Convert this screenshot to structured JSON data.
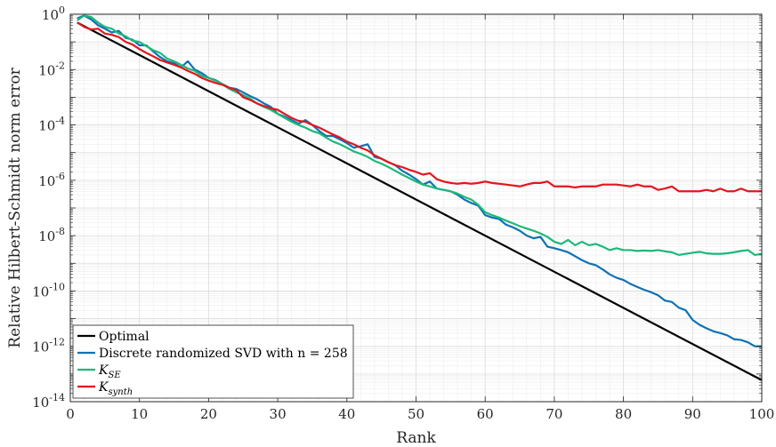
{
  "chart_data": {
    "type": "line",
    "xlabel": "Rank",
    "ylabel": "Relative Hilbert-Schmidt norm error",
    "xlim": [
      0,
      100
    ],
    "ylim_log10": [
      -14,
      0
    ],
    "yscale": "log",
    "grid": true,
    "minor_grid": true,
    "legend_position": "bottom-left",
    "x_ticks": [
      "0",
      "10",
      "20",
      "30",
      "40",
      "50",
      "60",
      "70",
      "80",
      "90",
      "100"
    ],
    "y_ticks": [
      {
        "base": "10",
        "exp": "0",
        "log10": 0
      },
      {
        "base": "10",
        "exp": "-2",
        "log10": -2
      },
      {
        "base": "10",
        "exp": "-4",
        "log10": -4
      },
      {
        "base": "10",
        "exp": "-6",
        "log10": -6
      },
      {
        "base": "10",
        "exp": "-8",
        "log10": -8
      },
      {
        "base": "10",
        "exp": "-10",
        "log10": -10
      },
      {
        "base": "10",
        "exp": "-12",
        "log10": -12
      },
      {
        "base": "10",
        "exp": "-14",
        "log10": -14
      }
    ],
    "series": [
      {
        "name": "Optimal",
        "color": "#000000",
        "points": [
          [
            1,
            0.5
          ],
          [
            100,
            6e-14
          ]
        ]
      },
      {
        "name": "Discrete randomized SVD with n = 258",
        "color": "#0f72b5",
        "points": [
          [
            1,
            0.7
          ],
          [
            2,
            0.9
          ],
          [
            3,
            0.65
          ],
          [
            4,
            0.4
          ],
          [
            5,
            0.3
          ],
          [
            6,
            0.22
          ],
          [
            7,
            0.25
          ],
          [
            8,
            0.14
          ],
          [
            9,
            0.12
          ],
          [
            10,
            0.075
          ],
          [
            11,
            0.075
          ],
          [
            12,
            0.045
          ],
          [
            13,
            0.028
          ],
          [
            14,
            0.02
          ],
          [
            15,
            0.017
          ],
          [
            16,
            0.012
          ],
          [
            17,
            0.02
          ],
          [
            18,
            0.01
          ],
          [
            19,
            0.0075
          ],
          [
            20,
            0.005
          ],
          [
            21,
            0.0042
          ],
          [
            22,
            0.003
          ],
          [
            23,
            0.0022
          ],
          [
            24,
            0.002
          ],
          [
            25,
            0.0015
          ],
          [
            26,
            0.0011
          ],
          [
            27,
            0.00085
          ],
          [
            28,
            0.0006
          ],
          [
            29,
            0.00045
          ],
          [
            30,
            0.00025
          ],
          [
            31,
            0.0002
          ],
          [
            32,
            0.00015
          ],
          [
            33,
            0.00011
          ],
          [
            34,
            0.00015
          ],
          [
            35,
            0.0001
          ],
          [
            36,
            6e-05
          ],
          [
            37,
            4e-05
          ],
          [
            38,
            4e-05
          ],
          [
            39,
            3e-05
          ],
          [
            40,
            2.2e-05
          ],
          [
            41,
            1.5e-05
          ],
          [
            42,
            1.7e-05
          ],
          [
            43,
            2e-05
          ],
          [
            44,
            7e-06
          ],
          [
            45,
            6e-06
          ],
          [
            46,
            4.5e-06
          ],
          [
            47,
            3.5e-06
          ],
          [
            48,
            2.2e-06
          ],
          [
            49,
            1.6e-06
          ],
          [
            50,
            1.1e-06
          ],
          [
            51,
            7e-07
          ],
          [
            52,
            9e-07
          ],
          [
            53,
            5e-07
          ],
          [
            54,
            4.5e-07
          ],
          [
            55,
            4e-07
          ],
          [
            56,
            3e-07
          ],
          [
            57,
            2e-07
          ],
          [
            58,
            1.5e-07
          ],
          [
            59,
            1.2e-07
          ],
          [
            60,
            5.5e-08
          ],
          [
            61,
            4.5e-08
          ],
          [
            62,
            4e-08
          ],
          [
            63,
            2.5e-08
          ],
          [
            64,
            2e-08
          ],
          [
            65,
            1.5e-08
          ],
          [
            66,
            1e-08
          ],
          [
            67,
            8e-09
          ],
          [
            68,
            9e-09
          ],
          [
            69,
            4e-09
          ],
          [
            70,
            3.5e-09
          ],
          [
            71,
            3e-09
          ],
          [
            72,
            2.5e-09
          ],
          [
            73,
            1.8e-09
          ],
          [
            74,
            1.3e-09
          ],
          [
            75,
            1e-09
          ],
          [
            76,
            8.5e-10
          ],
          [
            77,
            6e-10
          ],
          [
            78,
            4e-10
          ],
          [
            79,
            3e-10
          ],
          [
            80,
            2.5e-10
          ],
          [
            81,
            1.8e-10
          ],
          [
            82,
            1.4e-10
          ],
          [
            83,
            1.1e-10
          ],
          [
            84,
            9e-11
          ],
          [
            85,
            7e-11
          ],
          [
            86,
            4.5e-11
          ],
          [
            87,
            4e-11
          ],
          [
            88,
            2.5e-11
          ],
          [
            89,
            2e-11
          ],
          [
            90,
            9e-12
          ],
          [
            91,
            6e-12
          ],
          [
            92,
            4.5e-12
          ],
          [
            93,
            3.5e-12
          ],
          [
            94,
            3e-12
          ],
          [
            95,
            2.5e-12
          ],
          [
            96,
            1.8e-12
          ],
          [
            97,
            1.7e-12
          ],
          [
            98,
            1.4e-12
          ],
          [
            99,
            1e-12
          ],
          [
            100,
            1e-12
          ]
        ]
      },
      {
        "name": "K_SE",
        "color": "#1db87a",
        "points": [
          [
            1,
            0.6
          ],
          [
            2,
            0.9
          ],
          [
            3,
            0.8
          ],
          [
            4,
            0.5
          ],
          [
            5,
            0.35
          ],
          [
            6,
            0.3
          ],
          [
            7,
            0.2
          ],
          [
            8,
            0.16
          ],
          [
            9,
            0.11
          ],
          [
            10,
            0.1
          ],
          [
            11,
            0.07
          ],
          [
            12,
            0.05
          ],
          [
            13,
            0.04
          ],
          [
            14,
            0.025
          ],
          [
            15,
            0.02
          ],
          [
            16,
            0.015
          ],
          [
            17,
            0.011
          ],
          [
            18,
            0.009
          ],
          [
            19,
            0.006
          ],
          [
            20,
            0.005
          ],
          [
            21,
            0.004
          ],
          [
            22,
            0.003
          ],
          [
            23,
            0.002
          ],
          [
            24,
            0.0015
          ],
          [
            25,
            0.0012
          ],
          [
            26,
            0.0009
          ],
          [
            27,
            0.0006
          ],
          [
            28,
            0.00045
          ],
          [
            29,
            0.00035
          ],
          [
            30,
            0.00025
          ],
          [
            31,
            0.00018
          ],
          [
            32,
            0.00013
          ],
          [
            33,
            0.0001
          ],
          [
            34,
            8e-05
          ],
          [
            35,
            6e-05
          ],
          [
            36,
            5e-05
          ],
          [
            37,
            3.5e-05
          ],
          [
            38,
            2.5e-05
          ],
          [
            39,
            2e-05
          ],
          [
            40,
            1.5e-05
          ],
          [
            41,
            1.1e-05
          ],
          [
            42,
            9e-06
          ],
          [
            43,
            7e-06
          ],
          [
            44,
            5e-06
          ],
          [
            45,
            4e-06
          ],
          [
            46,
            3e-06
          ],
          [
            47,
            2.2e-06
          ],
          [
            48,
            1.6e-06
          ],
          [
            49,
            1.2e-06
          ],
          [
            50,
            9e-07
          ],
          [
            51,
            7e-07
          ],
          [
            52,
            6e-07
          ],
          [
            53,
            5e-07
          ],
          [
            54,
            4.5e-07
          ],
          [
            55,
            4e-07
          ],
          [
            56,
            3.3e-07
          ],
          [
            57,
            2.5e-07
          ],
          [
            58,
            2e-07
          ],
          [
            59,
            1.3e-07
          ],
          [
            60,
            7e-08
          ],
          [
            61,
            5.5e-08
          ],
          [
            62,
            4.5e-08
          ],
          [
            63,
            3.5e-08
          ],
          [
            64,
            2.8e-08
          ],
          [
            65,
            2.2e-08
          ],
          [
            66,
            1.8e-08
          ],
          [
            67,
            1.5e-08
          ],
          [
            68,
            1.2e-08
          ],
          [
            69,
            9e-09
          ],
          [
            70,
            6e-09
          ],
          [
            71,
            5e-09
          ],
          [
            72,
            7e-09
          ],
          [
            73,
            4.5e-09
          ],
          [
            74,
            6e-09
          ],
          [
            75,
            4.5e-09
          ],
          [
            76,
            5e-09
          ],
          [
            77,
            4e-09
          ],
          [
            78,
            3e-09
          ],
          [
            79,
            3.5e-09
          ],
          [
            80,
            3e-09
          ],
          [
            81,
            3e-09
          ],
          [
            82,
            2.8e-09
          ],
          [
            83,
            2.9e-09
          ],
          [
            84,
            2.8e-09
          ],
          [
            85,
            3e-09
          ],
          [
            86,
            2.7e-09
          ],
          [
            87,
            2.5e-09
          ],
          [
            88,
            2e-09
          ],
          [
            89,
            2.2e-09
          ],
          [
            90,
            2.4e-09
          ],
          [
            91,
            2.6e-09
          ],
          [
            92,
            2.3e-09
          ],
          [
            93,
            2.2e-09
          ],
          [
            94,
            2.2e-09
          ],
          [
            95,
            2.3e-09
          ],
          [
            96,
            2.5e-09
          ],
          [
            97,
            2.8e-09
          ],
          [
            98,
            3e-09
          ],
          [
            99,
            2e-09
          ],
          [
            100,
            2.2e-09
          ]
        ]
      },
      {
        "name": "K_synth",
        "color": "#e3161e",
        "points": [
          [
            1,
            0.5
          ],
          [
            2,
            0.35
          ],
          [
            3,
            0.28
          ],
          [
            4,
            0.3
          ],
          [
            5,
            0.2
          ],
          [
            6,
            0.18
          ],
          [
            7,
            0.15
          ],
          [
            8,
            0.1
          ],
          [
            9,
            0.08
          ],
          [
            10,
            0.055
          ],
          [
            11,
            0.04
          ],
          [
            12,
            0.03
          ],
          [
            13,
            0.022
          ],
          [
            14,
            0.018
          ],
          [
            15,
            0.015
          ],
          [
            16,
            0.012
          ],
          [
            17,
            0.009
          ],
          [
            18,
            0.007
          ],
          [
            19,
            0.005
          ],
          [
            20,
            0.004
          ],
          [
            21,
            0.0033
          ],
          [
            22,
            0.0028
          ],
          [
            23,
            0.0022
          ],
          [
            24,
            0.0018
          ],
          [
            25,
            0.001
          ],
          [
            26,
            0.0008
          ],
          [
            27,
            0.0006
          ],
          [
            28,
            0.00048
          ],
          [
            29,
            0.0004
          ],
          [
            30,
            0.00035
          ],
          [
            31,
            0.00025
          ],
          [
            32,
            0.00018
          ],
          [
            33,
            0.00014
          ],
          [
            34,
            0.00013
          ],
          [
            35,
            0.0001
          ],
          [
            36,
            8e-05
          ],
          [
            37,
            6e-05
          ],
          [
            38,
            4.5e-05
          ],
          [
            39,
            3.5e-05
          ],
          [
            40,
            2.5e-05
          ],
          [
            41,
            2e-05
          ],
          [
            42,
            1.5e-05
          ],
          [
            43,
            1.2e-05
          ],
          [
            44,
            8e-06
          ],
          [
            45,
            6e-06
          ],
          [
            46,
            4.5e-06
          ],
          [
            47,
            3.5e-06
          ],
          [
            48,
            3e-06
          ],
          [
            49,
            2.4e-06
          ],
          [
            50,
            2e-06
          ],
          [
            51,
            1.6e-06
          ],
          [
            52,
            1.8e-06
          ],
          [
            53,
            1.1e-06
          ],
          [
            54,
            9e-07
          ],
          [
            55,
            8e-07
          ],
          [
            56,
            7.5e-07
          ],
          [
            57,
            8e-07
          ],
          [
            58,
            7.5e-07
          ],
          [
            59,
            8e-07
          ],
          [
            60,
            9e-07
          ],
          [
            61,
            8e-07
          ],
          [
            62,
            7.5e-07
          ],
          [
            63,
            7e-07
          ],
          [
            64,
            6.5e-07
          ],
          [
            65,
            6e-07
          ],
          [
            66,
            7e-07
          ],
          [
            67,
            8e-07
          ],
          [
            68,
            8e-07
          ],
          [
            69,
            9e-07
          ],
          [
            70,
            6e-07
          ],
          [
            71,
            6e-07
          ],
          [
            72,
            6e-07
          ],
          [
            73,
            5.5e-07
          ],
          [
            74,
            6e-07
          ],
          [
            75,
            6e-07
          ],
          [
            76,
            6e-07
          ],
          [
            77,
            7e-07
          ],
          [
            78,
            7e-07
          ],
          [
            79,
            7e-07
          ],
          [
            80,
            6.5e-07
          ],
          [
            81,
            6e-07
          ],
          [
            82,
            7e-07
          ],
          [
            83,
            6e-07
          ],
          [
            84,
            6e-07
          ],
          [
            85,
            4.5e-07
          ],
          [
            86,
            5e-07
          ],
          [
            87,
            6e-07
          ],
          [
            88,
            4e-07
          ],
          [
            89,
            4e-07
          ],
          [
            90,
            4e-07
          ],
          [
            91,
            4e-07
          ],
          [
            92,
            4.5e-07
          ],
          [
            93,
            4e-07
          ],
          [
            94,
            5e-07
          ],
          [
            95,
            4e-07
          ],
          [
            96,
            4e-07
          ],
          [
            97,
            5e-07
          ],
          [
            98,
            4e-07
          ],
          [
            99,
            4e-07
          ],
          [
            100,
            4e-07
          ]
        ]
      }
    ],
    "legend": [
      {
        "text": "Optimal",
        "sub": ""
      },
      {
        "text": "Discrete randomized SVD with n = 258",
        "sub": ""
      },
      {
        "text": "K",
        "sub": "SE"
      },
      {
        "text": "K",
        "sub": "synth"
      }
    ]
  }
}
